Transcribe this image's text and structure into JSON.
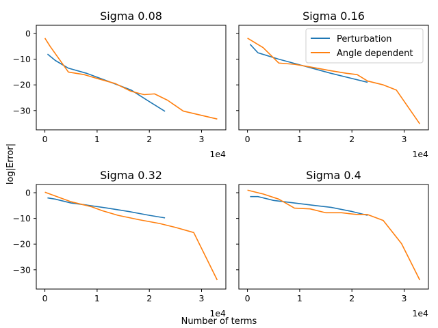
{
  "figure": {
    "ylabel": "log|Error|",
    "xlabel": "Number of terms"
  },
  "legend": {
    "entries": [
      "Perturbation",
      "Angle dependent"
    ]
  },
  "colors": {
    "Perturbation": "#1f77b4",
    "Angle dependent": "#ff7f0e"
  },
  "chart_data": [
    {
      "type": "line",
      "title": "Sigma 0.08",
      "x_multiplier": "1e4",
      "xlim": [
        -0.165,
        3.465
      ],
      "ylim": [
        -37.5,
        3.2
      ],
      "xticks": [
        0,
        1,
        2,
        3
      ],
      "yticks": [
        0,
        -10,
        -20,
        -30
      ],
      "series": [
        {
          "name": "Perturbation",
          "x": [
            0.05,
            0.2,
            0.45,
            0.8,
            1.2,
            1.65,
            2.0,
            2.3
          ],
          "y": [
            -8,
            -10.5,
            -13.5,
            -15.5,
            -18.5,
            -22,
            -26.5,
            -30.3
          ]
        },
        {
          "name": "Angle dependent",
          "x": [
            0.0,
            0.1,
            0.45,
            0.75,
            1.0,
            1.35,
            1.65,
            1.9,
            2.1,
            2.35,
            2.65,
            3.3
          ],
          "y": [
            -1.8,
            -5,
            -15,
            -16,
            -17.5,
            -19.5,
            -22.5,
            -23.8,
            -23.5,
            -26,
            -30.2,
            -33.3
          ]
        }
      ]
    },
    {
      "type": "line",
      "title": "Sigma 0.16",
      "x_multiplier": "1e4",
      "xlim": [
        -0.165,
        3.465
      ],
      "ylim": [
        -37.5,
        3.2
      ],
      "xticks": [
        0,
        1,
        2,
        3
      ],
      "yticks": [
        0,
        -10,
        -20,
        -30
      ],
      "series": [
        {
          "name": "Perturbation",
          "x": [
            0.05,
            0.2,
            0.6,
            1.0,
            1.6,
            2.3
          ],
          "y": [
            -4.2,
            -7.5,
            -10,
            -12.2,
            -15.5,
            -19
          ]
        },
        {
          "name": "Angle dependent",
          "x": [
            0.0,
            0.3,
            0.6,
            0.9,
            1.2,
            1.6,
            1.9,
            2.1,
            2.3,
            2.6,
            2.85,
            3.3
          ],
          "y": [
            -1.8,
            -5.5,
            -11.5,
            -12,
            -13,
            -14.5,
            -15.5,
            -16,
            -18.5,
            -20,
            -22,
            -35.2
          ]
        }
      ]
    },
    {
      "type": "line",
      "title": "Sigma 0.32",
      "x_multiplier": "1e4",
      "xlim": [
        -0.165,
        3.465
      ],
      "ylim": [
        -37.5,
        3.2
      ],
      "xticks": [
        0,
        1,
        2,
        3
      ],
      "yticks": [
        0,
        -10,
        -20,
        -30
      ],
      "series": [
        {
          "name": "Perturbation",
          "x": [
            0.05,
            0.2,
            0.5,
            0.8,
            1.2,
            1.6,
            2.0,
            2.3
          ],
          "y": [
            -2,
            -2.5,
            -4,
            -4.8,
            -6,
            -7.3,
            -8.8,
            -9.8
          ]
        },
        {
          "name": "Angle dependent",
          "x": [
            0.0,
            0.5,
            0.9,
            1.1,
            1.4,
            1.8,
            2.2,
            2.5,
            2.85,
            3.3
          ],
          "y": [
            0.2,
            -3.5,
            -5.5,
            -7,
            -8.8,
            -10.5,
            -12,
            -13.5,
            -15.5,
            -34
          ]
        }
      ]
    },
    {
      "type": "line",
      "title": "Sigma 0.4",
      "x_multiplier": "1e4",
      "xlim": [
        -0.165,
        3.465
      ],
      "ylim": [
        -37.5,
        3.2
      ],
      "xticks": [
        0,
        1,
        2,
        3
      ],
      "yticks": [
        0,
        -10,
        -20,
        -30
      ],
      "series": [
        {
          "name": "Perturbation",
          "x": [
            0.05,
            0.2,
            0.5,
            0.9,
            1.3,
            1.6,
            2.0,
            2.3
          ],
          "y": [
            -1.5,
            -1.5,
            -3,
            -4,
            -5,
            -5.7,
            -7.3,
            -8.8
          ]
        },
        {
          "name": "Angle dependent",
          "x": [
            0.0,
            0.3,
            0.6,
            0.9,
            1.2,
            1.5,
            1.8,
            2.1,
            2.3,
            2.6,
            2.95,
            3.3
          ],
          "y": [
            1,
            -0.5,
            -2.5,
            -6,
            -6.3,
            -7.8,
            -7.8,
            -8.5,
            -8.5,
            -10.8,
            -19.8,
            -34
          ]
        }
      ]
    }
  ]
}
